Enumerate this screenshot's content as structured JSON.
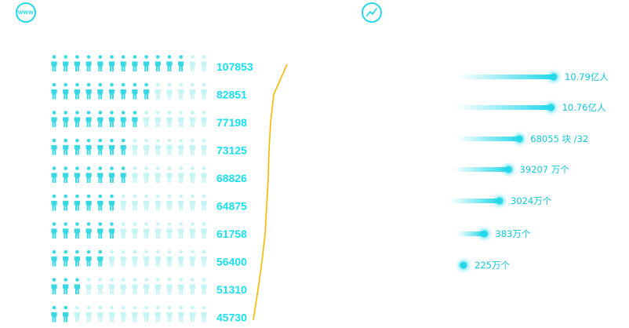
{
  "icons": {
    "left": "www-icon",
    "right": "trend-icon",
    "www_text": "www"
  },
  "colors": {
    "accent": "#25d8ea",
    "person_filled": "#38d9e4",
    "person_empty": "#c5f4f4",
    "value_text": "#19e0f0",
    "trend_line": "#f5b700",
    "bullet_label": "#10c8dc"
  },
  "chart_data": [
    {
      "type": "bar",
      "chart_style": "pictograph",
      "icons_per_row": 14,
      "values": [
        107853,
        82851,
        77198,
        73125,
        68826,
        64875,
        61758,
        56400,
        51310,
        45730
      ],
      "labels": [
        "107853",
        "82851",
        "77198",
        "73125",
        "68826",
        "64875",
        "61758",
        "56400",
        "51310",
        "45730"
      ],
      "filled_icons": [
        12,
        9,
        8,
        7.4,
        7,
        6.4,
        6,
        5,
        3,
        2
      ],
      "overlay": {
        "type": "line",
        "color": "#f5b700"
      }
    },
    {
      "type": "bar",
      "chart_style": "glow-bullet",
      "labels": [
        "10.79亿人",
        "10.76亿人",
        "68055 块 /32",
        "39207 万个",
        "3024万个",
        "383万个",
        "225万个"
      ],
      "lengths": [
        1.0,
        0.97,
        0.62,
        0.5,
        0.4,
        0.23,
        0.0
      ]
    }
  ]
}
